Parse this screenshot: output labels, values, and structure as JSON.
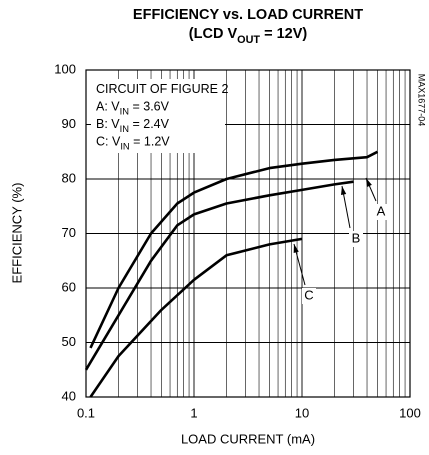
{
  "chart_data": {
    "type": "line",
    "title": [
      [
        "EFFICIENCY vs. LOAD CURRENT"
      ],
      [
        "(LCD V",
        "OUT",
        " = 12V)"
      ]
    ],
    "legend_text": [
      [
        "CIRCUIT OF FIGURE 2"
      ],
      [
        "A: V",
        "IN",
        " = 3.6V"
      ],
      [
        "B: V",
        "IN",
        " = 2.4V"
      ],
      [
        "C: V",
        "IN",
        " = 1.2V"
      ]
    ],
    "side_label": "MAX1677-04",
    "xlabel": "LOAD CURRENT (mA)",
    "ylabel": "EFFICIENCY (%)",
    "xscale": "log",
    "xlim": [
      0.1,
      100
    ],
    "xticks": [
      0.1,
      1,
      10,
      100
    ],
    "x_minor_ticks": [
      0.2,
      0.3,
      0.4,
      0.5,
      0.6,
      0.7,
      0.8,
      0.9,
      2,
      3,
      4,
      5,
      6,
      7,
      8,
      9,
      20,
      30,
      40,
      50,
      60,
      70,
      80,
      90
    ],
    "ylim": [
      40,
      100
    ],
    "yticks": [
      40,
      50,
      60,
      70,
      80,
      90,
      100
    ],
    "grid": true,
    "series": [
      {
        "name": "A",
        "color": "#000000",
        "x": [
          0.11,
          0.2,
          0.4,
          0.7,
          1,
          2,
          5,
          10,
          20,
          40,
          50
        ],
        "values": [
          49,
          60,
          70,
          75.5,
          77.5,
          80,
          82,
          82.8,
          83.5,
          84,
          85
        ]
      },
      {
        "name": "B",
        "color": "#000000",
        "x": [
          0.1,
          0.2,
          0.4,
          0.7,
          1,
          2,
          5,
          10,
          20,
          30
        ],
        "values": [
          45,
          55,
          65,
          71.5,
          73.5,
          75.5,
          77,
          78,
          79,
          79.5
        ]
      },
      {
        "name": "C",
        "color": "#000000",
        "x": [
          0.11,
          0.2,
          0.5,
          1,
          2,
          5,
          10
        ],
        "values": [
          40,
          47.5,
          56,
          61.5,
          66,
          68,
          69
        ]
      }
    ]
  }
}
